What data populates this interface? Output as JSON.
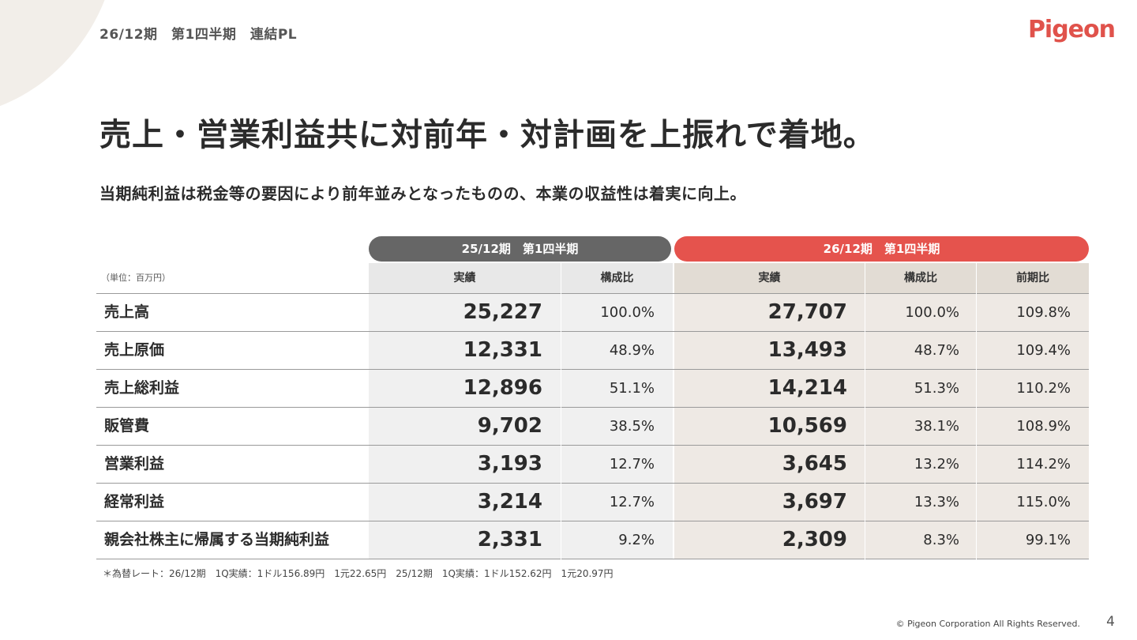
{
  "header": {
    "label": "26/12期　第1四半期　連結PL"
  },
  "logo": {
    "text": "Pigeon",
    "color": "#e0524b"
  },
  "headline": "売上・営業利益共に対前年・対計画を上振れで着地。",
  "subheadline": "当期純利益は税金等の要因により前年並みとなったものの、本業の収益性は着実に向上。",
  "table": {
    "unit_label": "（単位：百万円）",
    "period_prev": "25/12期　第1四半期",
    "period_curr": "26/12期　第1四半期",
    "col_actual_prev": "実績",
    "col_ratio_prev": "構成比",
    "col_actual_curr": "実績",
    "col_ratio_curr": "構成比",
    "col_yoy": "前期比",
    "rows": [
      {
        "label": "売上高",
        "prev_actual": "25,227",
        "prev_ratio": "100.0%",
        "curr_actual": "27,707",
        "curr_ratio": "100.0%",
        "yoy": "109.8%"
      },
      {
        "label": "売上原価",
        "prev_actual": "12,331",
        "prev_ratio": "48.9%",
        "curr_actual": "13,493",
        "curr_ratio": "48.7%",
        "yoy": "109.4%"
      },
      {
        "label": "売上総利益",
        "prev_actual": "12,896",
        "prev_ratio": "51.1%",
        "curr_actual": "14,214",
        "curr_ratio": "51.3%",
        "yoy": "110.2%"
      },
      {
        "label": "販管費",
        "prev_actual": "9,702",
        "prev_ratio": "38.5%",
        "curr_actual": "10,569",
        "curr_ratio": "38.1%",
        "yoy": "108.9%"
      },
      {
        "label": "営業利益",
        "prev_actual": "3,193",
        "prev_ratio": "12.7%",
        "curr_actual": "3,645",
        "curr_ratio": "13.2%",
        "yoy": "114.2%"
      },
      {
        "label": "経常利益",
        "prev_actual": "3,214",
        "prev_ratio": "12.7%",
        "curr_actual": "3,697",
        "curr_ratio": "13.3%",
        "yoy": "115.0%"
      },
      {
        "label": "親会社株主に帰属する当期純利益",
        "prev_actual": "2,331",
        "prev_ratio": "9.2%",
        "curr_actual": "2,309",
        "curr_ratio": "8.3%",
        "yoy": "99.1%"
      }
    ]
  },
  "footnote": "＊為替レート：26/12期　1Q実績：1ドル156.89円　1元22.65円　25/12期　1Q実績：1ドル152.62円　1元20.97円",
  "copyright": "© Pigeon Corporation All Rights Reserved.",
  "page_number": "4",
  "colors": {
    "accent": "#e5534d",
    "prev_header": "#666666"
  }
}
